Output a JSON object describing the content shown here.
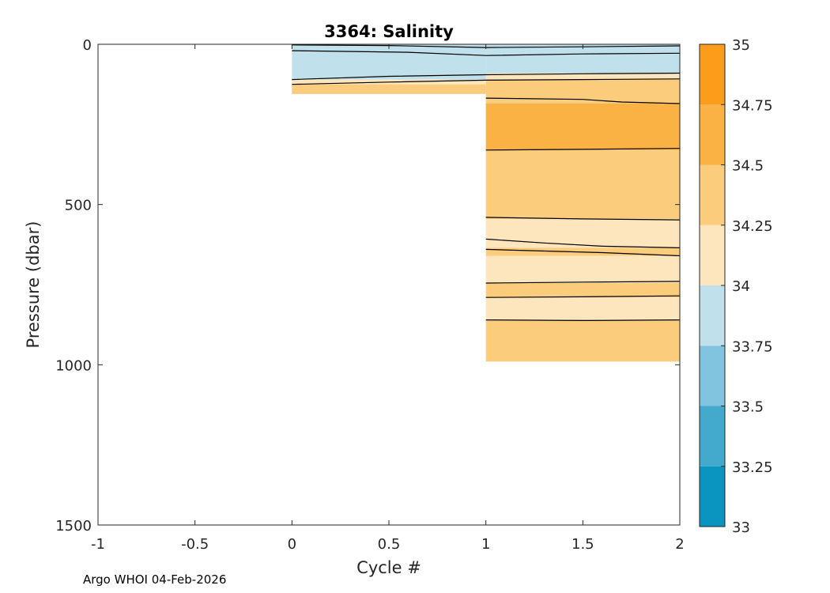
{
  "chart_data": {
    "type": "heatmap",
    "title": "3364:  Salinity",
    "xlabel": "Cycle #",
    "ylabel": "Pressure (dbar)",
    "xlim": [
      -1,
      2
    ],
    "ylim": [
      0,
      1500
    ],
    "y_reversed": true,
    "x_ticks": [
      -1,
      -0.5,
      0,
      0.5,
      1,
      1.5,
      2
    ],
    "x_tick_labels": [
      "-1",
      "-0.5",
      "0",
      "0.5",
      "1",
      "1.5",
      "2"
    ],
    "y_ticks": [
      0,
      500,
      1000,
      1500
    ],
    "y_tick_labels": [
      "0",
      "500",
      "1000",
      "1500"
    ],
    "colorbar": {
      "levels": [
        33,
        33.25,
        33.5,
        33.75,
        34,
        34.25,
        34.5,
        34.75,
        35
      ],
      "labels": [
        "33",
        "33.25",
        "33.5",
        "33.75",
        "34",
        "34.25",
        "34.5",
        "34.75",
        "35"
      ],
      "colors": [
        "#0a94c0",
        "#43a9cd",
        "#80c4df",
        "#c0e1eb",
        "#fde5be",
        "#fbcc7b",
        "#fbb244",
        "#fb9d1a"
      ]
    },
    "bands": [
      {
        "x0": 0,
        "x1": 1,
        "top": 0,
        "bottom": 110,
        "value": 33.9
      },
      {
        "x0": 0,
        "x1": 1,
        "top": 110,
        "bottom": 125,
        "value": 34.1
      },
      {
        "x0": 0,
        "x1": 1,
        "top": 125,
        "bottom": 155,
        "value": 34.35
      },
      {
        "x0": 1,
        "x1": 2,
        "top": 0,
        "bottom": 90,
        "value": 33.9
      },
      {
        "x0": 1,
        "x1": 2,
        "top": 90,
        "bottom": 110,
        "value": 34.1
      },
      {
        "x0": 1,
        "x1": 2,
        "top": 110,
        "bottom": 185,
        "value": 34.35
      },
      {
        "x0": 1,
        "x1": 2,
        "top": 185,
        "bottom": 330,
        "value": 34.6
      },
      {
        "x0": 1,
        "x1": 2,
        "top": 330,
        "bottom": 545,
        "value": 34.35
      },
      {
        "x0": 1,
        "x1": 2,
        "top": 545,
        "bottom": 635,
        "value": 34.1
      },
      {
        "x0": 1,
        "x1": 2,
        "top": 635,
        "bottom": 660,
        "value": 34.35
      },
      {
        "x0": 1,
        "x1": 2,
        "top": 660,
        "bottom": 745,
        "value": 34.1
      },
      {
        "x0": 1,
        "x1": 2,
        "top": 745,
        "bottom": 790,
        "value": 34.35
      },
      {
        "x0": 1,
        "x1": 2,
        "top": 790,
        "bottom": 860,
        "value": 34.1
      },
      {
        "x0": 1,
        "x1": 2,
        "top": 860,
        "bottom": 990,
        "value": 34.35
      }
    ],
    "contour_lines": [
      [
        [
          0,
          2
        ],
        [
          0.5,
          4
        ],
        [
          1,
          10
        ],
        [
          1.5,
          8
        ],
        [
          2,
          5
        ]
      ],
      [
        [
          0,
          20
        ],
        [
          0.6,
          25
        ],
        [
          1,
          35
        ],
        [
          1.5,
          30
        ],
        [
          2,
          28
        ]
      ],
      [
        [
          0,
          110
        ],
        [
          0.5,
          100
        ],
        [
          1,
          95
        ],
        [
          1.5,
          92
        ],
        [
          2,
          90
        ]
      ],
      [
        [
          0,
          125
        ],
        [
          0.5,
          118
        ],
        [
          1,
          112
        ],
        [
          1.5,
          110
        ],
        [
          2,
          108
        ]
      ],
      [
        [
          1,
          168
        ],
        [
          1.5,
          172
        ],
        [
          1.7,
          180
        ],
        [
          2,
          185
        ]
      ],
      [
        [
          1,
          330
        ],
        [
          1.5,
          328
        ],
        [
          2,
          325
        ]
      ],
      [
        [
          1,
          540
        ],
        [
          1.5,
          545
        ],
        [
          2,
          548
        ]
      ],
      [
        [
          1,
          608
        ],
        [
          1.3,
          620
        ],
        [
          1.6,
          630
        ],
        [
          2,
          635
        ]
      ],
      [
        [
          1,
          640
        ],
        [
          1.6,
          650
        ],
        [
          2,
          660
        ]
      ],
      [
        [
          1,
          745
        ],
        [
          1.5,
          742
        ],
        [
          2,
          740
        ]
      ],
      [
        [
          1,
          790
        ],
        [
          1.5,
          788
        ],
        [
          2,
          785
        ]
      ],
      [
        [
          1,
          860
        ],
        [
          1.5,
          862
        ],
        [
          2,
          860
        ]
      ]
    ]
  },
  "footer": "Argo WHOI 04-Feb-2026"
}
